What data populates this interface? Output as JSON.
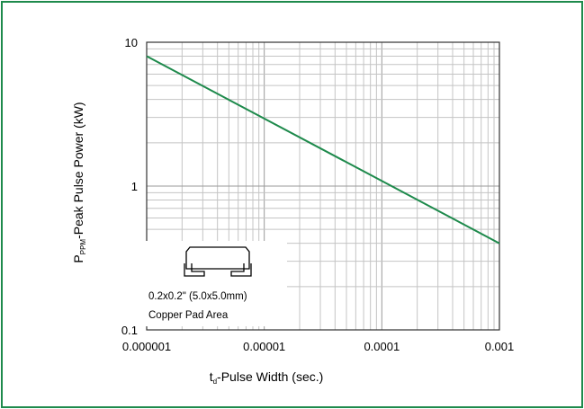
{
  "chart_data": {
    "type": "line",
    "xscale": "log",
    "yscale": "log",
    "xlim": [
      1e-06,
      0.001
    ],
    "ylim": [
      0.1,
      10
    ],
    "x_ticks": [
      1e-06,
      1e-05,
      0.0001,
      0.001
    ],
    "x_tick_labels": [
      "0.000001",
      "0.00001",
      "0.0001",
      "0.001"
    ],
    "y_ticks": [
      0.1,
      1,
      10
    ],
    "y_tick_labels": [
      "0.1",
      "1",
      "10"
    ],
    "xlabel": {
      "main": "t",
      "sub": "d",
      "rest": "-Pulse Width (sec.)"
    },
    "ylabel": {
      "main": "P",
      "sub": "PPM",
      "rest": "-Peak Pulse Power (kW)"
    },
    "grid": true,
    "series": [
      {
        "color": "#1e8a4c",
        "x": [
          1e-06,
          0.001
        ],
        "y": [
          8.0,
          0.4
        ]
      }
    ],
    "inset": {
      "line1": "0.2x0.2\" (5.0x5.0mm)",
      "line2": "Copper Pad Area",
      "icon": "copper-pad-package-icon"
    }
  }
}
